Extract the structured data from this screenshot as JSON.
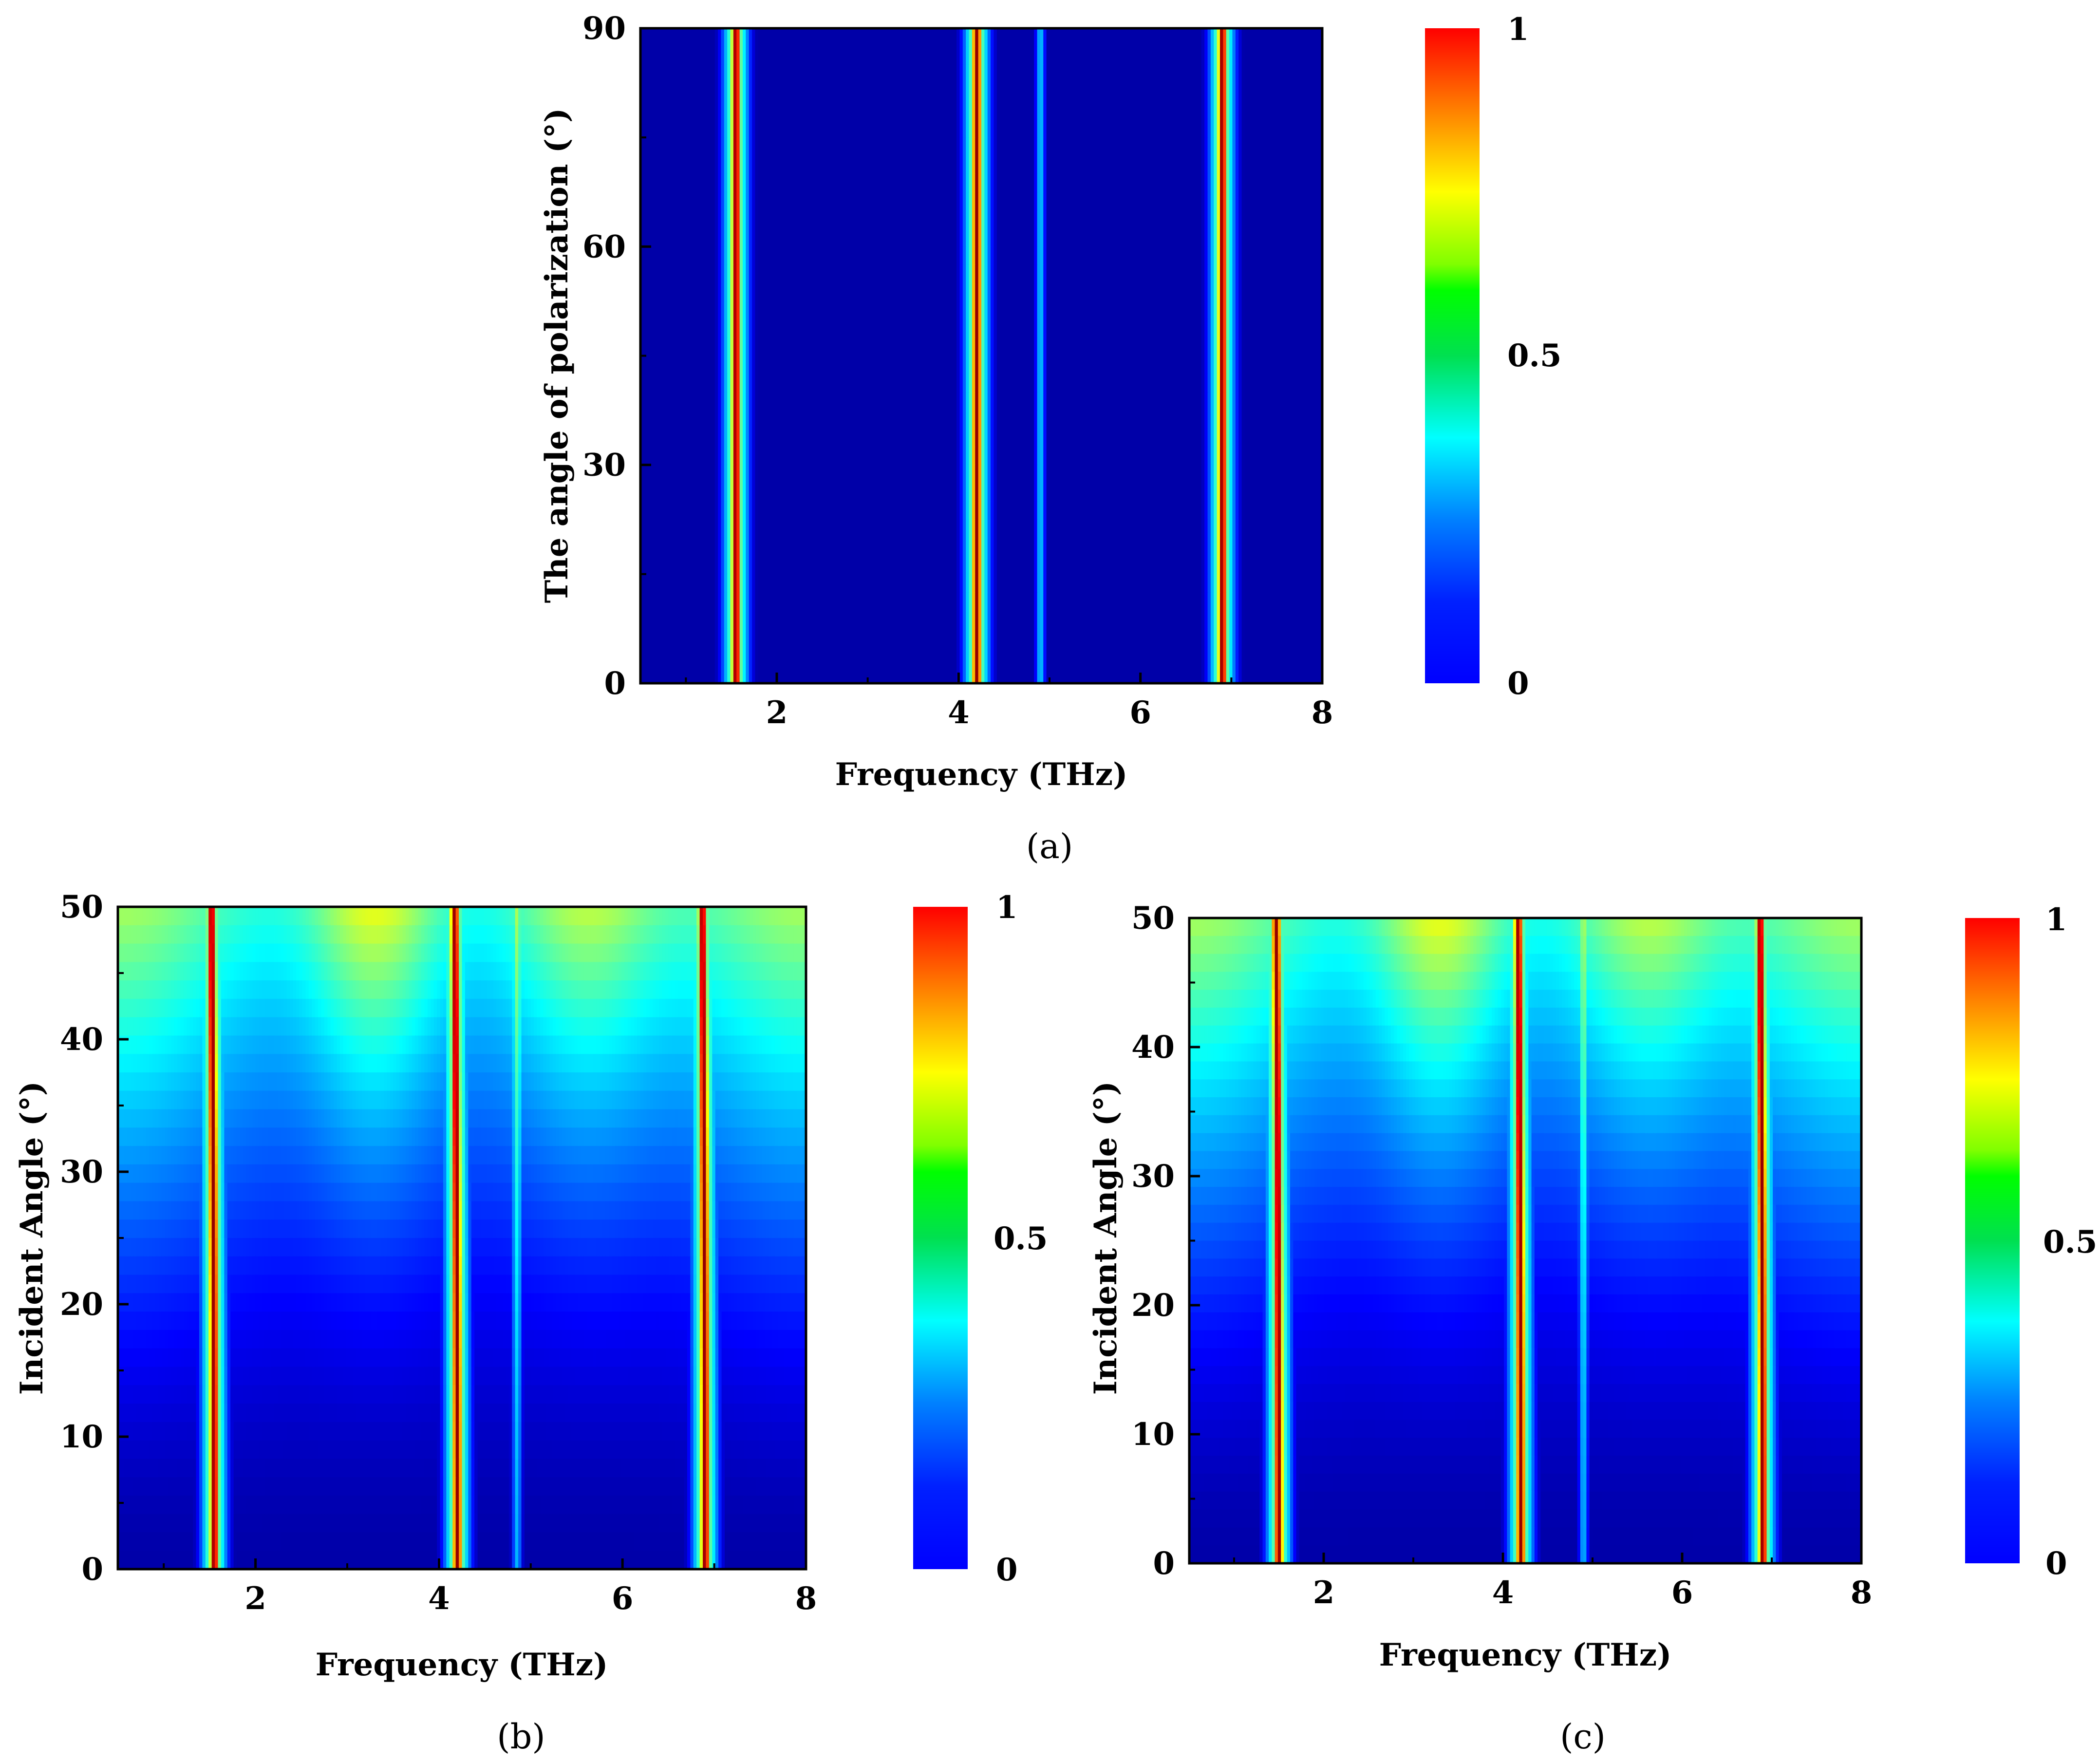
{
  "chart_data": [
    {
      "type": "heatmap",
      "panel_label": "(a)",
      "xlabel": "Frequency (THz)",
      "ylabel": "The angle of polarization (°)",
      "xlim": [
        0.5,
        8
      ],
      "ylim": [
        0,
        90
      ],
      "xticks": [
        "2",
        "4",
        "6",
        "8"
      ],
      "yticks": [
        "0",
        "30",
        "60",
        "90"
      ],
      "colorbar": {
        "min": 0,
        "max": 1,
        "ticks": [
          "0",
          "0.5",
          "1"
        ]
      },
      "resonances_THz": [
        1.55,
        4.2,
        6.9
      ],
      "weak_feature_THz": 4.9,
      "description_mode": "angle-independent"
    },
    {
      "type": "heatmap",
      "panel_label": "(b)",
      "xlabel": "Frequency (THz)",
      "ylabel": "Incident Angle (°)",
      "xlim": [
        0.5,
        8
      ],
      "ylim": [
        0,
        50
      ],
      "xticks": [
        "2",
        "4",
        "6",
        "8"
      ],
      "yticks": [
        "0",
        "10",
        "20",
        "30",
        "40",
        "50"
      ],
      "colorbar": {
        "min": 0,
        "max": 1,
        "ticks": [
          "0",
          "0.5",
          "1"
        ]
      },
      "resonances_THz": [
        1.55,
        4.2,
        6.9
      ],
      "weak_feature_THz": 4.85,
      "description_mode": "incident-angle"
    },
    {
      "type": "heatmap",
      "panel_label": "(c)",
      "xlabel": "Frequency (THz)",
      "ylabel": "Incident Angle (°)",
      "xlim": [
        0.5,
        8
      ],
      "ylim": [
        0,
        50
      ],
      "xticks": [
        "2",
        "4",
        "6",
        "8"
      ],
      "yticks": [
        "0",
        "10",
        "20",
        "30",
        "40",
        "50"
      ],
      "colorbar": {
        "min": 0,
        "max": 1,
        "ticks": [
          "0",
          "0.5",
          "1"
        ]
      },
      "resonances_THz": [
        1.5,
        4.2,
        6.9
      ],
      "weak_feature_THz": 4.9,
      "description_mode": "incident-angle"
    }
  ]
}
